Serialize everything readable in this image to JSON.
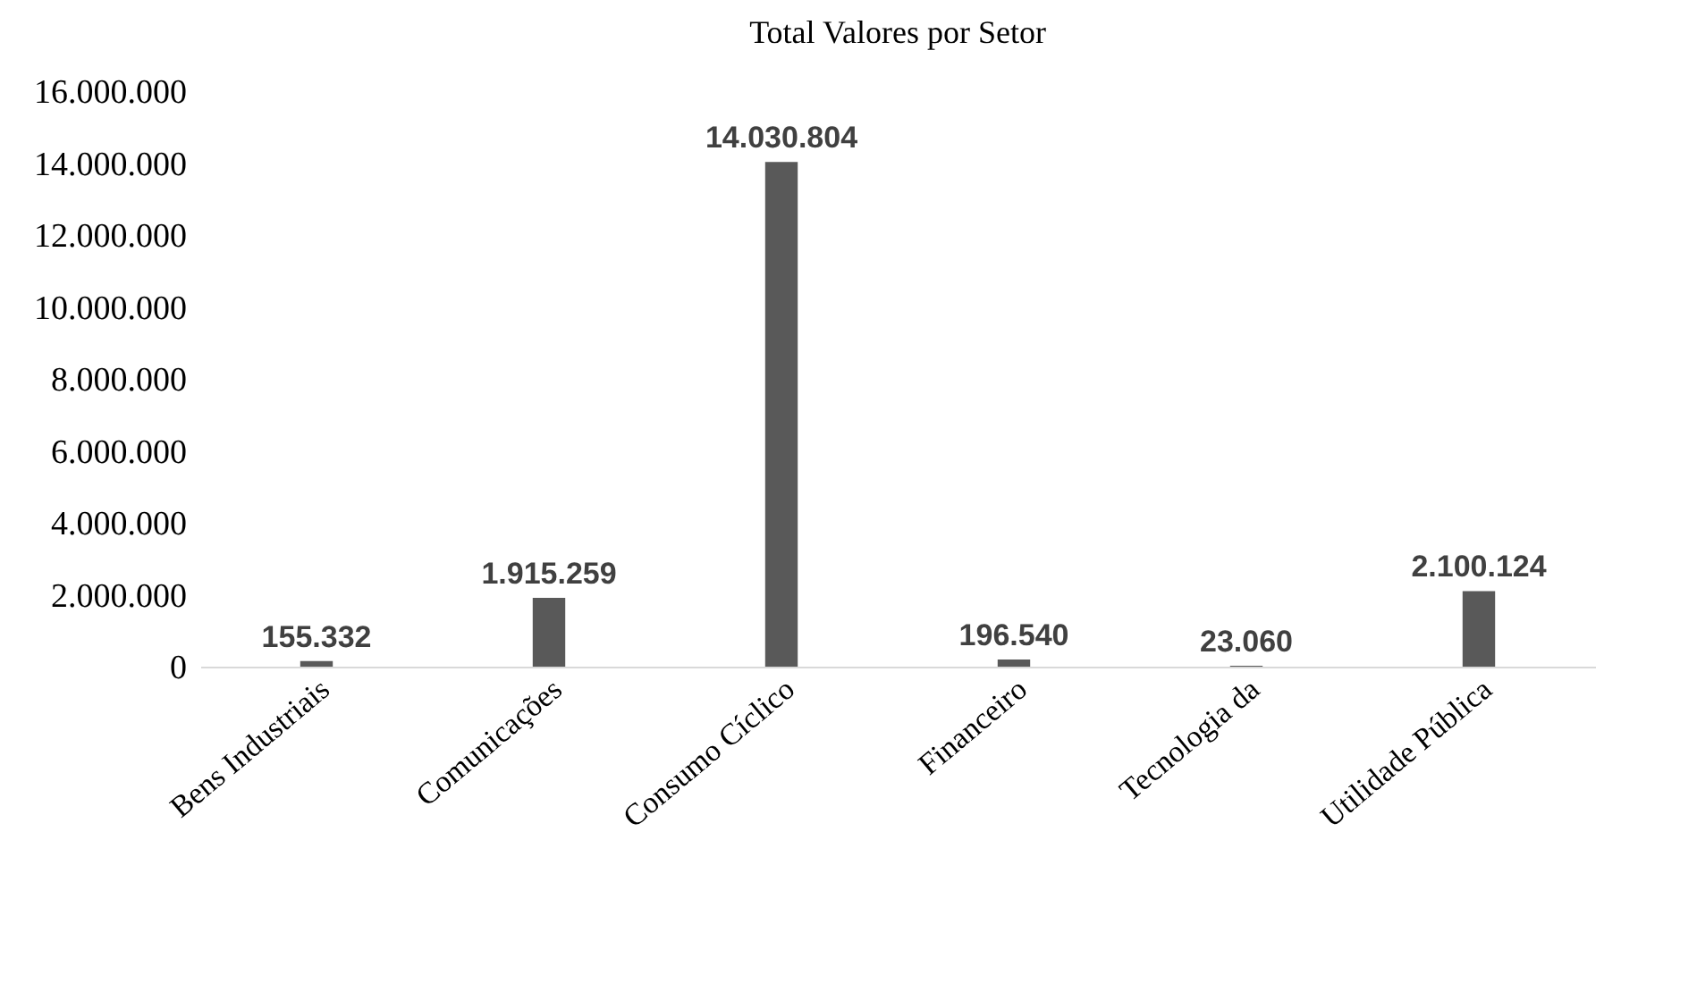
{
  "chart_data": {
    "type": "bar",
    "title": "Total Valores por Setor",
    "categories": [
      "Bens Industriais",
      "Comunicações",
      "Consumo Cíclico",
      "Financeiro",
      "Tecnologia da",
      "Utilidade Pública"
    ],
    "values": [
      155332,
      1915259,
      14030804,
      196540,
      23060,
      2100124
    ],
    "value_labels": [
      "155.332",
      "1.915.259",
      "14.030.804",
      "196.540",
      "23.060",
      "2.100.124"
    ],
    "color": "#595959",
    "ylim": [
      0,
      16000000
    ],
    "yticks": [
      {
        "value": 0,
        "label": "0"
      },
      {
        "value": 2000000,
        "label": "2.000.000"
      },
      {
        "value": 4000000,
        "label": "4.000.000"
      },
      {
        "value": 6000000,
        "label": "6.000.000"
      },
      {
        "value": 8000000,
        "label": "8.000.000"
      },
      {
        "value": 10000000,
        "label": "10.000.000"
      },
      {
        "value": 12000000,
        "label": "12.000.000"
      },
      {
        "value": 14000000,
        "label": "14.000.000"
      },
      {
        "value": 16000000,
        "label": "16.000.000"
      }
    ],
    "grid": false
  }
}
